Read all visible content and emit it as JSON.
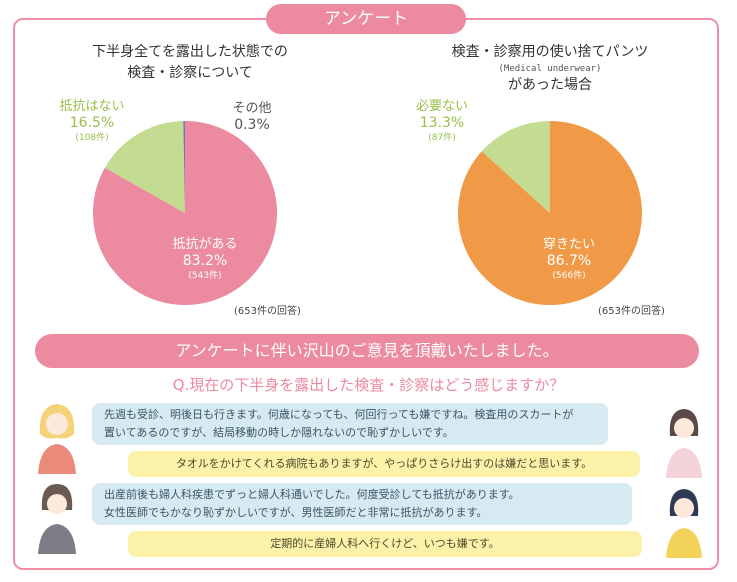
{
  "header": {
    "title": "アンケート"
  },
  "chart_data": [
    {
      "type": "pie",
      "title_lines": [
        "下半身全てを露出した状態での",
        "検査・診察について"
      ],
      "slices": [
        {
          "label": "抵抗がある",
          "percent": 83.2,
          "count": "(543件)",
          "color": "#ec8aa0"
        },
        {
          "label": "抵抗はない",
          "percent": 16.5,
          "count": "(108件)",
          "color": "#c4dc91"
        },
        {
          "label": "その他",
          "percent": 0.3,
          "count": "",
          "color": "#6b7fb0"
        }
      ],
      "percent_labels": [
        "83.2%",
        "16.5%",
        "0.3%"
      ],
      "total": "(653件の回答)"
    },
    {
      "type": "pie",
      "title_lines": [
        "検査・診察用の使い捨てパンツ",
        "(Medical underwear)",
        "があった場合"
      ],
      "slices": [
        {
          "label": "穿きたい",
          "percent": 86.7,
          "count": "(566件)",
          "color": "#f09a48"
        },
        {
          "label": "必要ない",
          "percent": 13.3,
          "count": "(87件)",
          "color": "#c4dc91"
        }
      ],
      "percent_labels": [
        "86.7%",
        "13.3%"
      ],
      "total": "(653件の回答)"
    }
  ],
  "banner": "アンケートに伴い沢山のご意見を頂戴いたしました。",
  "question": "Q.現在の下半身を露出した検査・診察はどう感じますか？",
  "comments": [
    {
      "lines": [
        "先週も受診、明後日も行きます。何歳になっても、何回行っても嫌ですね。検査用のスカートが",
        "置いてあるのですが、結局移動の時しか隠れないので恥ずかしいです。"
      ]
    },
    {
      "lines": [
        "タオルをかけてくれる病院もありますが、やっぱりさらけ出すのは嫌だと思います。"
      ]
    },
    {
      "lines": [
        "出産前後も婦人科疾患でずっと婦人科通いでした。何度受診しても抵抗があります。",
        "女性医師でもかなり恥ずかしいですが、男性医師だと非常に抵抗があります。"
      ]
    },
    {
      "lines": [
        "定期的に産婦人科へ行くけど、いつも嫌です。"
      ]
    }
  ]
}
